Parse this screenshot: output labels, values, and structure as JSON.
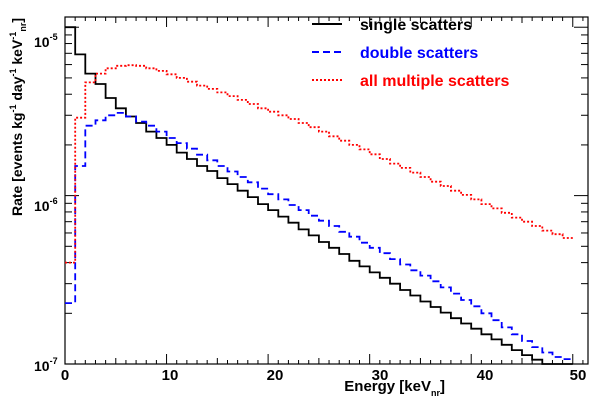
{
  "chart_data": {
    "type": "line",
    "xlabel": "Energy [keV",
    "xlabel_sub": "nr",
    "xlabel_close": "]",
    "ylabel": "Rate [events kg",
    "ylabel_exp1": "-1",
    "ylabel_mid": " day",
    "ylabel_exp2": "-1",
    "ylabel_mid2": " keV",
    "ylabel_exp3": "-1",
    "ylabel_sub": "nr",
    "ylabel_close": "]",
    "xlim": [
      0,
      51.5
    ],
    "ylim": [
      1e-07,
      1.15e-05
    ],
    "y_scale": "log",
    "grid": false,
    "legend_position": "top-right",
    "x_ticks": [
      "0",
      "10",
      "20",
      "30",
      "40",
      "50"
    ],
    "y_ticks": [
      {
        "base": "10",
        "exp": "-5"
      },
      {
        "base": "10",
        "exp": "-6"
      },
      {
        "base": "10",
        "exp": "-7"
      }
    ],
    "bin_width": 1,
    "series": [
      {
        "name": "single scatters",
        "color": "#000000",
        "style": "solid",
        "values": [
          1e-05,
          6.9e-06,
          5.3e-06,
          4.6e-06,
          3.8e-06,
          3.3e-06,
          2.95e-06,
          2.7e-06,
          2.4e-06,
          2.2e-06,
          2e-06,
          1.8e-06,
          1.65e-06,
          1.5e-06,
          1.4e-06,
          1.27e-06,
          1.17e-06,
          1.07e-06,
          9.8e-07,
          8.9e-07,
          8.2e-07,
          7.5e-07,
          6.9e-07,
          6.3e-07,
          5.8e-07,
          5.3e-07,
          4.9e-07,
          4.5e-07,
          4.1e-07,
          3.8e-07,
          3.5e-07,
          3.25e-07,
          3e-07,
          2.75e-07,
          2.55e-07,
          2.35e-07,
          2.18e-07,
          2.02e-07,
          1.87e-07,
          1.74e-07,
          1.62e-07,
          1.5e-07,
          1.4e-07,
          1.3e-07,
          1.21e-07,
          1.13e-07,
          1.06e-07,
          1e-07,
          1e-07,
          1e-07
        ]
      },
      {
        "name": "double scatters",
        "color": "#0000ff",
        "style": "dashed",
        "values": [
          2.3e-07,
          1.5e-06,
          2.6e-06,
          2.8e-06,
          3e-06,
          3.1e-06,
          2.95e-06,
          2.75e-06,
          2.6e-06,
          2.4e-06,
          2.2e-06,
          2.05e-06,
          1.9e-06,
          1.75e-06,
          1.62e-06,
          1.5e-06,
          1.39e-06,
          1.29e-06,
          1.2e-06,
          1.1e-06,
          1.02e-06,
          9.5e-07,
          8.8e-07,
          8.2e-07,
          7.6e-07,
          7.1e-07,
          6.6e-07,
          6.1e-07,
          5.7e-07,
          5.25e-07,
          4.9e-07,
          4.55e-07,
          4.2e-07,
          3.9e-07,
          3.6e-07,
          3.35e-07,
          3.1e-07,
          2.85e-07,
          2.62e-07,
          2.4e-07,
          2.2e-07,
          2e-07,
          1.82e-07,
          1.65e-07,
          1.5e-07,
          1.37e-07,
          1.26e-07,
          1.17e-07,
          1.1e-07,
          1.07e-07
        ]
      },
      {
        "name": "all multiple scatters",
        "color": "#ff0000",
        "style": "dotted",
        "values": [
          4e-07,
          2.9e-06,
          4.7e-06,
          5.3e-06,
          5.7e-06,
          5.9e-06,
          5.95e-06,
          5.9e-06,
          5.7e-06,
          5.5e-06,
          5.25e-06,
          5e-06,
          4.75e-06,
          4.5e-06,
          4.3e-06,
          4.1e-06,
          3.9e-06,
          3.7e-06,
          3.5e-06,
          3.3e-06,
          3.15e-06,
          3e-06,
          2.85e-06,
          2.7e-06,
          2.55e-06,
          2.4e-06,
          2.25e-06,
          2.12e-06,
          2e-06,
          1.88e-06,
          1.76e-06,
          1.65e-06,
          1.55e-06,
          1.46e-06,
          1.37e-06,
          1.29e-06,
          1.21e-06,
          1.14e-06,
          1.07e-06,
          1.01e-06,
          9.5e-07,
          8.9e-07,
          8.4e-07,
          7.9e-07,
          7.4e-07,
          7e-07,
          6.6e-07,
          6.2e-07,
          5.9e-07,
          5.6e-07
        ]
      }
    ]
  }
}
